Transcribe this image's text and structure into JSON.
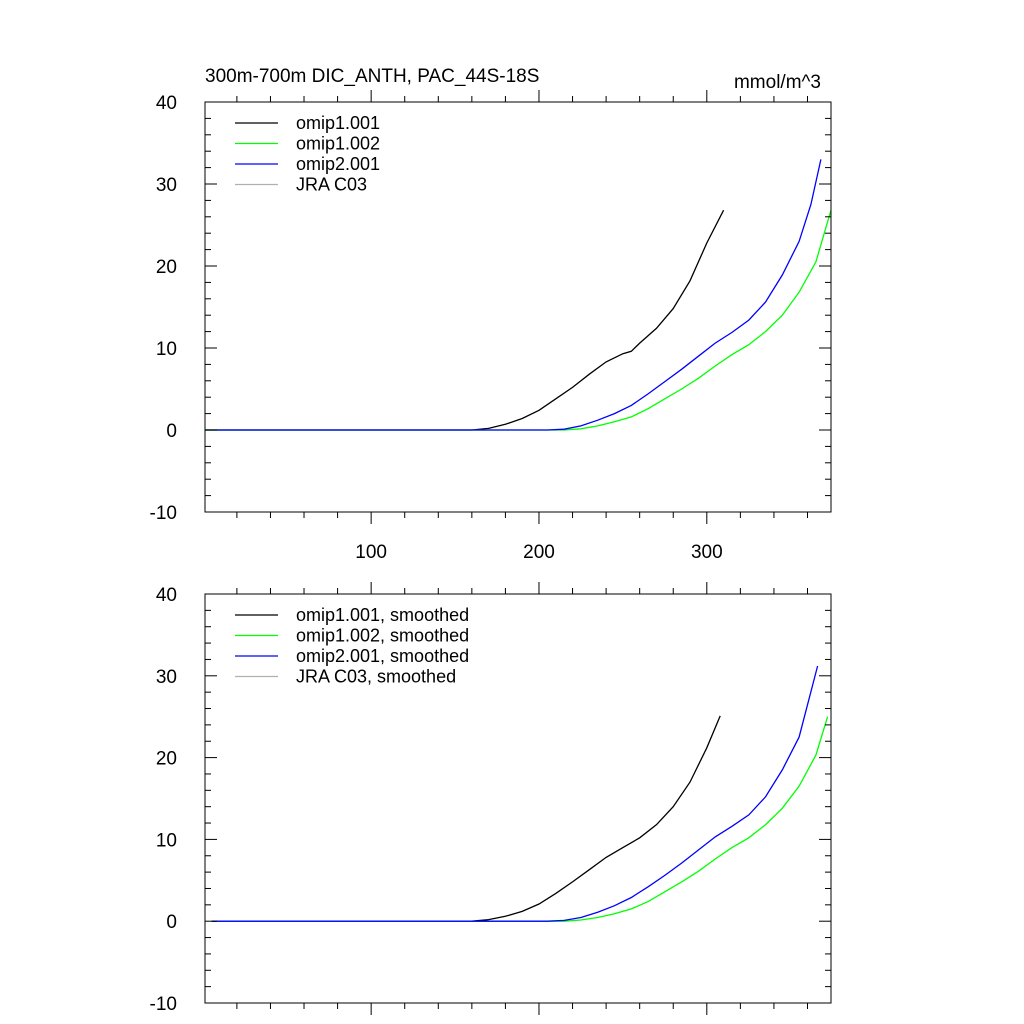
{
  "chart_data": [
    {
      "type": "line",
      "title": "300m-700m DIC_ANTH, PAC_44S-18S",
      "units": "mmol/m^3",
      "xlim": [
        1,
        374
      ],
      "ylim": [
        -10,
        40
      ],
      "x_ticks": [
        100,
        200,
        300
      ],
      "x_ticks_labeled": true,
      "y_ticks": [
        -10,
        0,
        10,
        20,
        30,
        40
      ],
      "legend_position": "top-left",
      "series": [
        {
          "name": "omip1.001",
          "color": "#000000",
          "x": [
            1,
            160,
            170,
            180,
            190,
            200,
            210,
            220,
            230,
            240,
            250,
            255,
            260,
            270,
            280,
            290,
            300,
            310
          ],
          "y": [
            0,
            0,
            0.2,
            0.7,
            1.4,
            2.4,
            3.8,
            5.2,
            6.8,
            8.3,
            9.3,
            9.6,
            10.6,
            12.4,
            14.8,
            18.2,
            22.8,
            26.8
          ]
        },
        {
          "name": "omip1.002",
          "color": "#00ff00",
          "x": [
            1,
            215,
            225,
            235,
            245,
            255,
            265,
            275,
            285,
            295,
            305,
            315,
            325,
            335,
            345,
            355,
            365,
            374
          ],
          "y": [
            0,
            0,
            0.15,
            0.5,
            1.0,
            1.6,
            2.6,
            3.8,
            5.0,
            6.3,
            7.8,
            9.2,
            10.4,
            12.0,
            14.0,
            16.8,
            20.5,
            26.8
          ]
        },
        {
          "name": "omip2.001",
          "color": "#0000ff",
          "x": [
            1,
            205,
            215,
            225,
            235,
            245,
            255,
            265,
            275,
            285,
            295,
            305,
            315,
            325,
            335,
            345,
            355,
            362,
            368
          ],
          "y": [
            0,
            0,
            0.1,
            0.5,
            1.2,
            2.0,
            3.0,
            4.4,
            5.9,
            7.4,
            9.0,
            10.6,
            11.9,
            13.4,
            15.6,
            18.9,
            23.0,
            27.5,
            33.0
          ]
        },
        {
          "name": "JRA C03",
          "color": "#b0b0b0",
          "x": [],
          "y": []
        }
      ]
    },
    {
      "type": "line",
      "title": "",
      "xlim": [
        1,
        374
      ],
      "ylim": [
        -10,
        40
      ],
      "x_ticks": [
        100,
        200,
        300
      ],
      "x_ticks_labeled": false,
      "y_ticks": [
        -10,
        0,
        10,
        20,
        30,
        40
      ],
      "legend_position": "top-left",
      "series": [
        {
          "name": "omip1.001, smoothed",
          "color": "#000000",
          "x": [
            5,
            160,
            170,
            180,
            190,
            200,
            210,
            220,
            230,
            240,
            250,
            260,
            270,
            280,
            290,
            300,
            308
          ],
          "y": [
            0,
            0,
            0.2,
            0.6,
            1.2,
            2.1,
            3.4,
            4.8,
            6.3,
            7.8,
            9.0,
            10.2,
            11.8,
            14.0,
            17.0,
            21.2,
            25.1
          ]
        },
        {
          "name": "omip1.002, smoothed",
          "color": "#00ff00",
          "x": [
            5,
            215,
            225,
            235,
            245,
            255,
            265,
            275,
            285,
            295,
            305,
            315,
            325,
            335,
            345,
            355,
            365,
            372
          ],
          "y": [
            0,
            0,
            0.15,
            0.45,
            0.9,
            1.5,
            2.4,
            3.6,
            4.8,
            6.1,
            7.6,
            9.0,
            10.2,
            11.8,
            13.8,
            16.5,
            20.3,
            25.0
          ]
        },
        {
          "name": "omip2.001, smoothed",
          "color": "#0000ff",
          "x": [
            5,
            205,
            215,
            225,
            235,
            245,
            255,
            265,
            275,
            285,
            295,
            305,
            315,
            325,
            335,
            345,
            355,
            366
          ],
          "y": [
            0,
            0,
            0.1,
            0.45,
            1.1,
            1.9,
            2.9,
            4.2,
            5.6,
            7.1,
            8.7,
            10.3,
            11.6,
            13.0,
            15.2,
            18.5,
            22.5,
            31.2
          ]
        },
        {
          "name": "JRA C03, smoothed",
          "color": "#b0b0b0",
          "x": [],
          "y": []
        }
      ]
    }
  ]
}
